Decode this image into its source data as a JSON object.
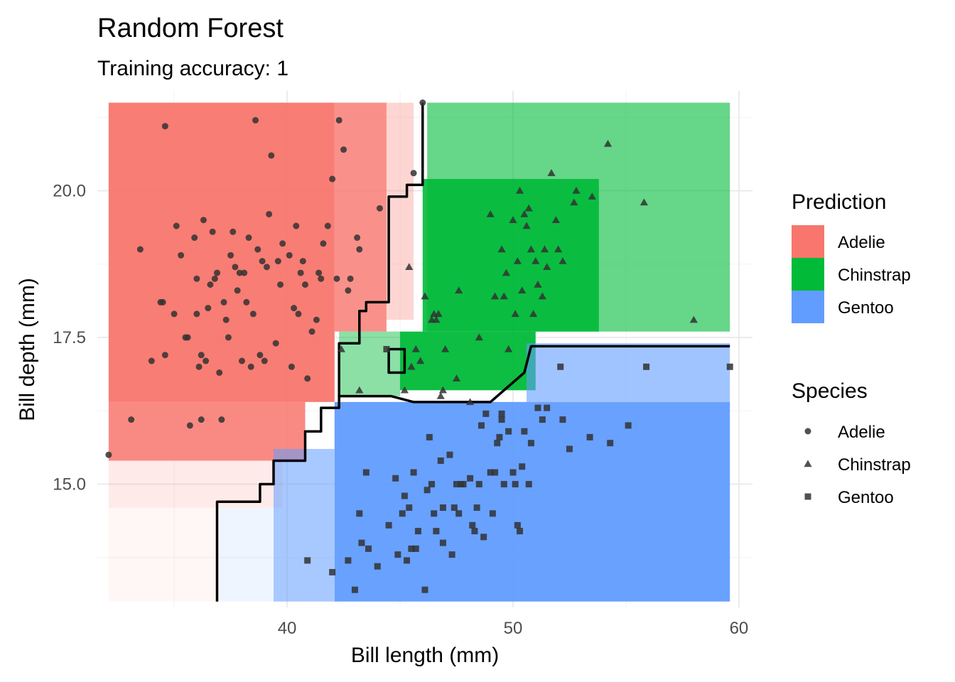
{
  "chart_data": {
    "type": "scatter",
    "title": "Random Forest",
    "subtitle": "Training accuracy: 1",
    "xlabel": "Bill length (mm)",
    "ylabel": "Bill depth (mm)",
    "xlim": [
      31.6,
      60.6
    ],
    "ylim": [
      12.9,
      21.7
    ],
    "x_ticks": [
      40,
      50,
      60
    ],
    "x_tick_labels": [
      "40",
      "50",
      "60"
    ],
    "y_ticks": [
      15.0,
      17.5,
      20.0
    ],
    "y_tick_labels": [
      "15.0",
      "17.5",
      "20.0"
    ],
    "grid": true,
    "legend_placement": "right",
    "prediction_legend": {
      "title": "Prediction",
      "entries": [
        {
          "label": "Adelie",
          "color": "#F8766D"
        },
        {
          "label": "Chinstrap",
          "color": "#00BA38"
        },
        {
          "label": "Gentoo",
          "color": "#619CFF"
        }
      ]
    },
    "species_legend": {
      "title": "Species",
      "entries": [
        {
          "label": "Adelie",
          "shape": "circle"
        },
        {
          "label": "Chinstrap",
          "shape": "triangle"
        },
        {
          "label": "Gentoo",
          "shape": "square"
        }
      ]
    },
    "point_color": "#333333",
    "prediction_regions": [
      {
        "class": "Adelie",
        "x": [
          32.1,
          42.1
        ],
        "y": [
          16.4,
          21.5
        ],
        "opacity": 0.95
      },
      {
        "class": "Adelie",
        "x": [
          32.1,
          40.8
        ],
        "y": [
          15.4,
          16.4
        ],
        "opacity": 0.85
      },
      {
        "class": "Adelie",
        "x": [
          32.1,
          39.8
        ],
        "y": [
          14.6,
          15.4
        ],
        "opacity": 0.15
      },
      {
        "class": "Adelie",
        "x": [
          32.1,
          37.0
        ],
        "y": [
          13.0,
          14.6
        ],
        "opacity": 0.06
      },
      {
        "class": "Adelie",
        "x": [
          42.1,
          44.4
        ],
        "y": [
          17.6,
          21.5
        ],
        "opacity": 0.8
      },
      {
        "class": "Adelie",
        "x": [
          44.4,
          45.6
        ],
        "y": [
          17.8,
          21.5
        ],
        "opacity": 0.3
      },
      {
        "class": "Chinstrap",
        "x": [
          46.2,
          59.6
        ],
        "y": [
          17.6,
          21.5
        ],
        "opacity": 0.6
      },
      {
        "class": "Chinstrap",
        "x": [
          46.0,
          53.8
        ],
        "y": [
          17.6,
          20.2
        ],
        "opacity": 0.9
      },
      {
        "class": "Chinstrap",
        "x": [
          45.0,
          51.0
        ],
        "y": [
          16.6,
          17.6
        ],
        "opacity": 0.95
      },
      {
        "class": "Chinstrap",
        "x": [
          42.3,
          45.0
        ],
        "y": [
          16.5,
          17.6
        ],
        "opacity": 0.45
      },
      {
        "class": "Gentoo",
        "x": [
          42.1,
          59.6
        ],
        "y": [
          13.0,
          16.4
        ],
        "opacity": 0.95
      },
      {
        "class": "Gentoo",
        "x": [
          50.6,
          59.6
        ],
        "y": [
          16.4,
          17.4
        ],
        "opacity": 0.6
      },
      {
        "class": "Gentoo",
        "x": [
          39.4,
          42.1
        ],
        "y": [
          13.0,
          15.6
        ],
        "opacity": 0.55
      },
      {
        "class": "Gentoo",
        "x": [
          37.0,
          39.4
        ],
        "y": [
          13.0,
          14.6
        ],
        "opacity": 0.1
      }
    ],
    "decision_boundaries": [
      [
        [
          36.9,
          13.0
        ],
        [
          36.9,
          14.7
        ],
        [
          38.8,
          14.7
        ],
        [
          38.8,
          15.0
        ],
        [
          39.4,
          15.0
        ],
        [
          39.4,
          15.4
        ],
        [
          40.8,
          15.4
        ],
        [
          40.8,
          15.9
        ],
        [
          41.5,
          15.9
        ],
        [
          41.5,
          16.3
        ],
        [
          42.3,
          16.3
        ],
        [
          42.3,
          16.5
        ],
        [
          44.6,
          16.5
        ],
        [
          45.6,
          16.4
        ],
        [
          49.0,
          16.4
        ],
        [
          50.5,
          16.9
        ],
        [
          50.8,
          17.35
        ],
        [
          59.6,
          17.35
        ]
      ],
      [
        [
          42.3,
          16.5
        ],
        [
          42.3,
          17.4
        ],
        [
          43.2,
          17.4
        ],
        [
          43.2,
          17.95
        ],
        [
          43.5,
          17.95
        ],
        [
          43.5,
          18.1
        ],
        [
          44.5,
          18.1
        ],
        [
          44.5,
          19.9
        ],
        [
          45.3,
          19.9
        ],
        [
          45.3,
          20.1
        ],
        [
          46.0,
          20.1
        ],
        [
          46.0,
          21.5
        ]
      ],
      [
        [
          44.5,
          17.3
        ],
        [
          45.2,
          17.3
        ],
        [
          45.2,
          16.9
        ],
        [
          44.5,
          16.9
        ]
      ]
    ],
    "points": {
      "Adelie": [
        [
          32.1,
          15.5
        ],
        [
          33.1,
          16.1
        ],
        [
          33.5,
          19.0
        ],
        [
          34.0,
          17.1
        ],
        [
          34.4,
          18.1
        ],
        [
          34.5,
          18.1
        ],
        [
          34.6,
          21.1
        ],
        [
          34.6,
          17.2
        ],
        [
          35.0,
          17.9
        ],
        [
          35.1,
          19.4
        ],
        [
          35.3,
          18.9
        ],
        [
          35.5,
          17.5
        ],
        [
          35.6,
          17.5
        ],
        [
          35.7,
          16.0
        ],
        [
          35.9,
          19.2
        ],
        [
          36.0,
          17.9
        ],
        [
          36.0,
          18.5
        ],
        [
          36.2,
          17.2
        ],
        [
          36.2,
          16.1
        ],
        [
          36.3,
          19.5
        ],
        [
          36.4,
          17.1
        ],
        [
          36.5,
          18.0
        ],
        [
          36.6,
          18.4
        ],
        [
          36.7,
          19.3
        ],
        [
          36.8,
          18.5
        ],
        [
          36.9,
          18.6
        ],
        [
          37.0,
          16.9
        ],
        [
          37.1,
          16.1
        ],
        [
          37.2,
          18.1
        ],
        [
          37.3,
          17.8
        ],
        [
          37.5,
          18.9
        ],
        [
          37.6,
          19.3
        ],
        [
          37.7,
          18.7
        ],
        [
          37.8,
          18.3
        ],
        [
          37.9,
          18.6
        ],
        [
          38.0,
          17.1
        ],
        [
          38.1,
          18.6
        ],
        [
          38.2,
          18.1
        ],
        [
          38.3,
          19.2
        ],
        [
          38.5,
          17.9
        ],
        [
          38.6,
          21.2
        ],
        [
          38.7,
          19.0
        ],
        [
          38.8,
          17.2
        ],
        [
          38.9,
          18.8
        ],
        [
          39.0,
          17.1
        ],
        [
          39.1,
          18.7
        ],
        [
          39.2,
          19.6
        ],
        [
          39.3,
          20.6
        ],
        [
          39.5,
          17.4
        ],
        [
          39.6,
          18.8
        ],
        [
          39.7,
          18.4
        ],
        [
          39.8,
          19.1
        ],
        [
          40.1,
          18.9
        ],
        [
          40.2,
          17.0
        ],
        [
          40.3,
          18.0
        ],
        [
          40.5,
          17.9
        ],
        [
          40.6,
          18.6
        ],
        [
          40.7,
          18.8
        ],
        [
          40.8,
          18.4
        ],
        [
          40.9,
          16.8
        ],
        [
          41.1,
          17.6
        ],
        [
          41.3,
          17.8
        ],
        [
          41.5,
          18.5
        ],
        [
          41.6,
          19.1
        ],
        [
          41.8,
          19.4
        ],
        [
          42.0,
          20.2
        ],
        [
          42.2,
          18.5
        ],
        [
          42.3,
          21.2
        ],
        [
          42.5,
          20.7
        ],
        [
          42.7,
          18.3
        ],
        [
          42.8,
          18.5
        ],
        [
          43.1,
          19.2
        ],
        [
          43.2,
          19.0
        ],
        [
          44.1,
          19.7
        ],
        [
          45.6,
          20.3
        ],
        [
          46.0,
          21.5
        ],
        [
          40.4,
          19.4
        ],
        [
          41.4,
          18.6
        ],
        [
          37.4,
          17.5
        ],
        [
          38.4,
          17.0
        ],
        [
          36.1,
          17.0
        ]
      ],
      "Chinstrap": [
        [
          42.4,
          17.3
        ],
        [
          43.2,
          16.6
        ],
        [
          45.2,
          16.6
        ],
        [
          45.4,
          18.7
        ],
        [
          45.5,
          17.0
        ],
        [
          45.7,
          17.3
        ],
        [
          45.9,
          17.1
        ],
        [
          46.1,
          18.2
        ],
        [
          46.4,
          17.8
        ],
        [
          46.5,
          17.9
        ],
        [
          46.6,
          17.8
        ],
        [
          46.7,
          17.9
        ],
        [
          46.8,
          16.5
        ],
        [
          46.9,
          16.6
        ],
        [
          47.0,
          17.3
        ],
        [
          47.5,
          16.8
        ],
        [
          47.6,
          18.3
        ],
        [
          48.5,
          17.5
        ],
        [
          49.0,
          19.6
        ],
        [
          49.2,
          18.2
        ],
        [
          49.5,
          19.0
        ],
        [
          49.7,
          18.6
        ],
        [
          49.8,
          17.3
        ],
        [
          50.0,
          19.5
        ],
        [
          50.1,
          17.9
        ],
        [
          50.2,
          18.8
        ],
        [
          50.3,
          20.0
        ],
        [
          50.5,
          19.6
        ],
        [
          50.6,
          19.4
        ],
        [
          50.7,
          19.7
        ],
        [
          50.8,
          19.0
        ],
        [
          50.9,
          17.9
        ],
        [
          51.0,
          18.8
        ],
        [
          51.3,
          18.2
        ],
        [
          51.4,
          19.0
        ],
        [
          51.5,
          18.7
        ],
        [
          51.7,
          20.3
        ],
        [
          51.9,
          19.5
        ],
        [
          52.0,
          19.0
        ],
        [
          52.2,
          18.8
        ],
        [
          52.7,
          19.8
        ],
        [
          53.5,
          19.9
        ],
        [
          54.2,
          20.8
        ],
        [
          55.8,
          19.8
        ],
        [
          58.0,
          17.8
        ],
        [
          49.6,
          18.2
        ],
        [
          50.4,
          18.3
        ],
        [
          52.8,
          20.0
        ],
        [
          48.1,
          16.4
        ],
        [
          51.1,
          18.4
        ]
      ],
      "Gentoo": [
        [
          40.9,
          13.7
        ],
        [
          42.0,
          13.5
        ],
        [
          42.7,
          13.7
        ],
        [
          43.0,
          13.2
        ],
        [
          43.2,
          14.5
        ],
        [
          43.3,
          14.0
        ],
        [
          43.5,
          15.2
        ],
        [
          43.6,
          13.9
        ],
        [
          44.0,
          13.6
        ],
        [
          44.4,
          17.3
        ],
        [
          44.5,
          14.3
        ],
        [
          44.9,
          13.8
        ],
        [
          45.1,
          14.5
        ],
        [
          45.2,
          14.8
        ],
        [
          45.3,
          13.7
        ],
        [
          45.4,
          14.6
        ],
        [
          45.5,
          13.9
        ],
        [
          45.7,
          13.9
        ],
        [
          45.8,
          14.2
        ],
        [
          46.1,
          13.2
        ],
        [
          46.2,
          14.9
        ],
        [
          46.3,
          15.8
        ],
        [
          46.4,
          15.0
        ],
        [
          46.5,
          14.5
        ],
        [
          46.6,
          14.2
        ],
        [
          46.8,
          15.4
        ],
        [
          46.9,
          14.6
        ],
        [
          47.2,
          15.5
        ],
        [
          47.3,
          13.8
        ],
        [
          47.4,
          14.6
        ],
        [
          47.5,
          15.0
        ],
        [
          47.6,
          14.5
        ],
        [
          47.7,
          15.0
        ],
        [
          47.8,
          15.0
        ],
        [
          48.1,
          15.1
        ],
        [
          48.2,
          14.3
        ],
        [
          48.4,
          14.6
        ],
        [
          48.5,
          15.0
        ],
        [
          48.6,
          16.0
        ],
        [
          48.7,
          14.1
        ],
        [
          48.8,
          16.2
        ],
        [
          49.0,
          15.2
        ],
        [
          49.1,
          14.5
        ],
        [
          49.2,
          15.2
        ],
        [
          49.3,
          15.7
        ],
        [
          49.4,
          15.8
        ],
        [
          49.5,
          16.2
        ],
        [
          49.6,
          15.0
        ],
        [
          49.8,
          15.9
        ],
        [
          50.0,
          15.2
        ],
        [
          50.1,
          15.0
        ],
        [
          50.2,
          14.3
        ],
        [
          50.4,
          15.3
        ],
        [
          50.5,
          15.9
        ],
        [
          50.7,
          15.0
        ],
        [
          50.8,
          15.7
        ],
        [
          51.1,
          16.3
        ],
        [
          51.3,
          16.1
        ],
        [
          51.5,
          16.3
        ],
        [
          52.1,
          17.0
        ],
        [
          52.2,
          16.1
        ],
        [
          52.5,
          15.6
        ],
        [
          53.4,
          15.8
        ],
        [
          54.3,
          15.7
        ],
        [
          55.1,
          16.0
        ],
        [
          55.9,
          17.0
        ],
        [
          59.6,
          17.0
        ],
        [
          46.9,
          14.0
        ],
        [
          45.6,
          15.2
        ],
        [
          44.8,
          15.1
        ],
        [
          49.5,
          16.1
        ],
        [
          48.3,
          14.2
        ],
        [
          50.3,
          14.2
        ]
      ]
    }
  }
}
